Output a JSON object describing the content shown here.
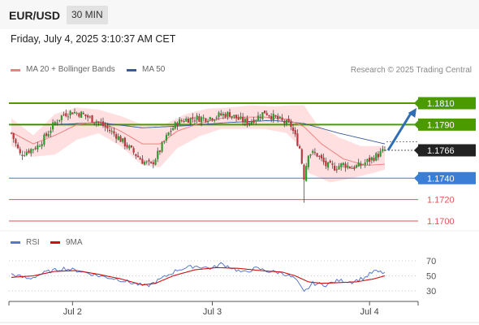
{
  "header": {
    "pair": "EUR/USD",
    "timeframe": "30 MIN"
  },
  "date_text": "Friday, July 4, 2025 3:10:37 AM CET",
  "legend": {
    "ma20": "MA 20 + Bollinger Bands",
    "ma50": "MA 50",
    "copyright": "Research © 2025 Trading Central"
  },
  "rsi_legend": {
    "rsi": "RSI",
    "ma9": "9MA"
  },
  "colors": {
    "resistance": "#4a9a00",
    "support": "#3a7ed6",
    "lowlevel": "#e05555",
    "current": "#222222",
    "up": "#2f9a2f",
    "down": "#b8373d",
    "ma20": "#f08080",
    "ma50": "#3a5a9a",
    "bands": "#ffd9d9",
    "arrow": "#2f6db5",
    "rsi": "#5577cc",
    "rsi_ma": "#cc1111"
  },
  "chart_data": {
    "type": "candlestick",
    "xlabel": "",
    "ylabel": "",
    "x_ticks": [
      "Jul 2",
      "Jul 3",
      "Jul 4"
    ],
    "ylim": [
      1.169,
      1.182
    ],
    "levels": [
      {
        "value": 1.181,
        "label": "1.1810",
        "kind": "resistance"
      },
      {
        "value": 1.179,
        "label": "1.1790",
        "kind": "resistance"
      },
      {
        "value": 1.1766,
        "label": "1.1766",
        "kind": "current"
      },
      {
        "value": 1.174,
        "label": "1.1740",
        "kind": "support"
      },
      {
        "value": 1.172,
        "label": "1.1720",
        "kind": "low"
      },
      {
        "value": 1.17,
        "label": "1.1700",
        "kind": "low"
      }
    ],
    "close_points": [
      [
        0,
        1.1782
      ],
      [
        4,
        1.1762
      ],
      [
        8,
        1.1766
      ],
      [
        12,
        1.177
      ],
      [
        16,
        1.178
      ],
      [
        20,
        1.1792
      ],
      [
        24,
        1.18
      ],
      [
        28,
        1.1802
      ],
      [
        32,
        1.18
      ],
      [
        36,
        1.1796
      ],
      [
        40,
        1.1792
      ],
      [
        44,
        1.1786
      ],
      [
        48,
        1.178
      ],
      [
        52,
        1.1772
      ],
      [
        56,
        1.1764
      ],
      [
        60,
        1.1756
      ],
      [
        64,
        1.1752
      ],
      [
        68,
        1.1766
      ],
      [
        72,
        1.1782
      ],
      [
        76,
        1.1792
      ],
      [
        80,
        1.1795
      ],
      [
        84,
        1.1796
      ],
      [
        88,
        1.1796
      ],
      [
        92,
        1.1797
      ],
      [
        96,
        1.1799
      ],
      [
        100,
        1.18
      ],
      [
        104,
        1.1795
      ],
      [
        108,
        1.1792
      ],
      [
        112,
        1.1796
      ],
      [
        116,
        1.1802
      ],
      [
        120,
        1.1797
      ],
      [
        124,
        1.1793
      ],
      [
        128,
        1.1789
      ],
      [
        132,
        1.1768
      ],
      [
        134,
        1.1741
      ],
      [
        136,
        1.1764
      ],
      [
        140,
        1.1762
      ],
      [
        144,
        1.1752
      ],
      [
        148,
        1.175
      ],
      [
        152,
        1.1753
      ],
      [
        156,
        1.175
      ],
      [
        160,
        1.1752
      ],
      [
        164,
        1.1757
      ],
      [
        168,
        1.1762
      ],
      [
        171,
        1.1766
      ]
    ],
    "n_candles": 172,
    "ma_points": [
      [
        0,
        1.1783
      ],
      [
        10,
        1.1772
      ],
      [
        20,
        1.178
      ],
      [
        30,
        1.179
      ],
      [
        40,
        1.1793
      ],
      [
        50,
        1.1784
      ],
      [
        60,
        1.1772
      ],
      [
        68,
        1.1772
      ],
      [
        76,
        1.1784
      ],
      [
        86,
        1.1791
      ],
      [
        96,
        1.1796
      ],
      [
        106,
        1.1797
      ],
      [
        116,
        1.1797
      ],
      [
        126,
        1.1795
      ],
      [
        134,
        1.1788
      ],
      [
        142,
        1.1772
      ],
      [
        152,
        1.1758
      ],
      [
        162,
        1.1752
      ],
      [
        171,
        1.1753
      ]
    ],
    "ma50_points": [
      [
        0,
        1.179
      ],
      [
        20,
        1.179
      ],
      [
        40,
        1.1792
      ],
      [
        60,
        1.1787
      ],
      [
        80,
        1.1789
      ],
      [
        100,
        1.1792
      ],
      [
        120,
        1.1794
      ],
      [
        134,
        1.1791
      ],
      [
        150,
        1.1782
      ],
      [
        171,
        1.1772
      ]
    ],
    "band_upper": [
      [
        0,
        1.1796
      ],
      [
        10,
        1.178
      ],
      [
        20,
        1.18
      ],
      [
        30,
        1.1806
      ],
      [
        40,
        1.1804
      ],
      [
        50,
        1.1798
      ],
      [
        60,
        1.179
      ],
      [
        70,
        1.179
      ],
      [
        80,
        1.18
      ],
      [
        90,
        1.1805
      ],
      [
        100,
        1.1806
      ],
      [
        110,
        1.1808
      ],
      [
        120,
        1.1807
      ],
      [
        128,
        1.1808
      ],
      [
        134,
        1.1808
      ],
      [
        140,
        1.179
      ],
      [
        150,
        1.1778
      ],
      [
        160,
        1.177
      ],
      [
        171,
        1.177
      ]
    ],
    "band_lower": [
      [
        0,
        1.177
      ],
      [
        10,
        1.176
      ],
      [
        20,
        1.1762
      ],
      [
        30,
        1.1776
      ],
      [
        40,
        1.1782
      ],
      [
        50,
        1.177
      ],
      [
        60,
        1.1752
      ],
      [
        68,
        1.175
      ],
      [
        76,
        1.1768
      ],
      [
        86,
        1.1779
      ],
      [
        96,
        1.1786
      ],
      [
        106,
        1.1786
      ],
      [
        116,
        1.1786
      ],
      [
        126,
        1.1782
      ],
      [
        132,
        1.177
      ],
      [
        136,
        1.1745
      ],
      [
        146,
        1.1736
      ],
      [
        156,
        1.174
      ],
      [
        166,
        1.1745
      ],
      [
        171,
        1.1748
      ]
    ],
    "arrow": {
      "from": [
        171,
        1.1766
      ],
      "to_value": 1.181
    },
    "rsi": {
      "ticks": [
        70,
        50,
        30
      ],
      "ylim": [
        20,
        80
      ],
      "rsi_points": [
        [
          0,
          52
        ],
        [
          8,
          46
        ],
        [
          16,
          55
        ],
        [
          24,
          60
        ],
        [
          32,
          56
        ],
        [
          40,
          50
        ],
        [
          48,
          46
        ],
        [
          56,
          40
        ],
        [
          62,
          36
        ],
        [
          68,
          45
        ],
        [
          76,
          58
        ],
        [
          84,
          63
        ],
        [
          92,
          60
        ],
        [
          96,
          66
        ],
        [
          100,
          62
        ],
        [
          106,
          54
        ],
        [
          112,
          60
        ],
        [
          118,
          56
        ],
        [
          124,
          54
        ],
        [
          130,
          46
        ],
        [
          134,
          28
        ],
        [
          138,
          40
        ],
        [
          144,
          38
        ],
        [
          150,
          44
        ],
        [
          156,
          42
        ],
        [
          162,
          48
        ],
        [
          166,
          56
        ],
        [
          171,
          54
        ]
      ],
      "ma_points": [
        [
          0,
          48
        ],
        [
          10,
          50
        ],
        [
          20,
          56
        ],
        [
          30,
          57
        ],
        [
          40,
          52
        ],
        [
          50,
          46
        ],
        [
          60,
          38
        ],
        [
          66,
          40
        ],
        [
          74,
          50
        ],
        [
          84,
          58
        ],
        [
          94,
          61
        ],
        [
          104,
          60
        ],
        [
          114,
          57
        ],
        [
          124,
          55
        ],
        [
          130,
          50
        ],
        [
          136,
          42
        ],
        [
          142,
          40
        ],
        [
          150,
          41
        ],
        [
          158,
          42
        ],
        [
          166,
          46
        ],
        [
          171,
          50
        ]
      ]
    }
  }
}
